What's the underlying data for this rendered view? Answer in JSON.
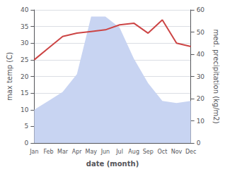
{
  "chart_data": {
    "type": "line",
    "xlabel": "date (month)",
    "ylabel": "max temp (C)",
    "y2label": "med. precipitation (kg/m2)",
    "categories": [
      "Jan",
      "Feb",
      "Mar",
      "Apr",
      "May",
      "Jun",
      "Jul",
      "Aug",
      "Sep",
      "Oct",
      "Nov",
      "Dec"
    ],
    "series": [
      {
        "type": "area",
        "axis": "y2",
        "color": "#c8d4f2",
        "values": [
          15,
          19,
          23,
          31,
          57,
          57,
          52,
          38,
          27,
          19,
          18,
          19
        ]
      },
      {
        "type": "line",
        "color": "#cc4444",
        "values": [
          25,
          28.5,
          32,
          33,
          33.5,
          34,
          35.5,
          36,
          33,
          37,
          30,
          29
        ]
      }
    ],
    "ylim": [
      0,
      40
    ],
    "yticks": [
      0,
      5,
      10,
      15,
      20,
      25,
      30,
      35,
      40
    ],
    "y2lim": [
      0,
      60
    ],
    "y2ticks": [
      0,
      10,
      20,
      30,
      40,
      50,
      60
    ],
    "grid": true
  }
}
